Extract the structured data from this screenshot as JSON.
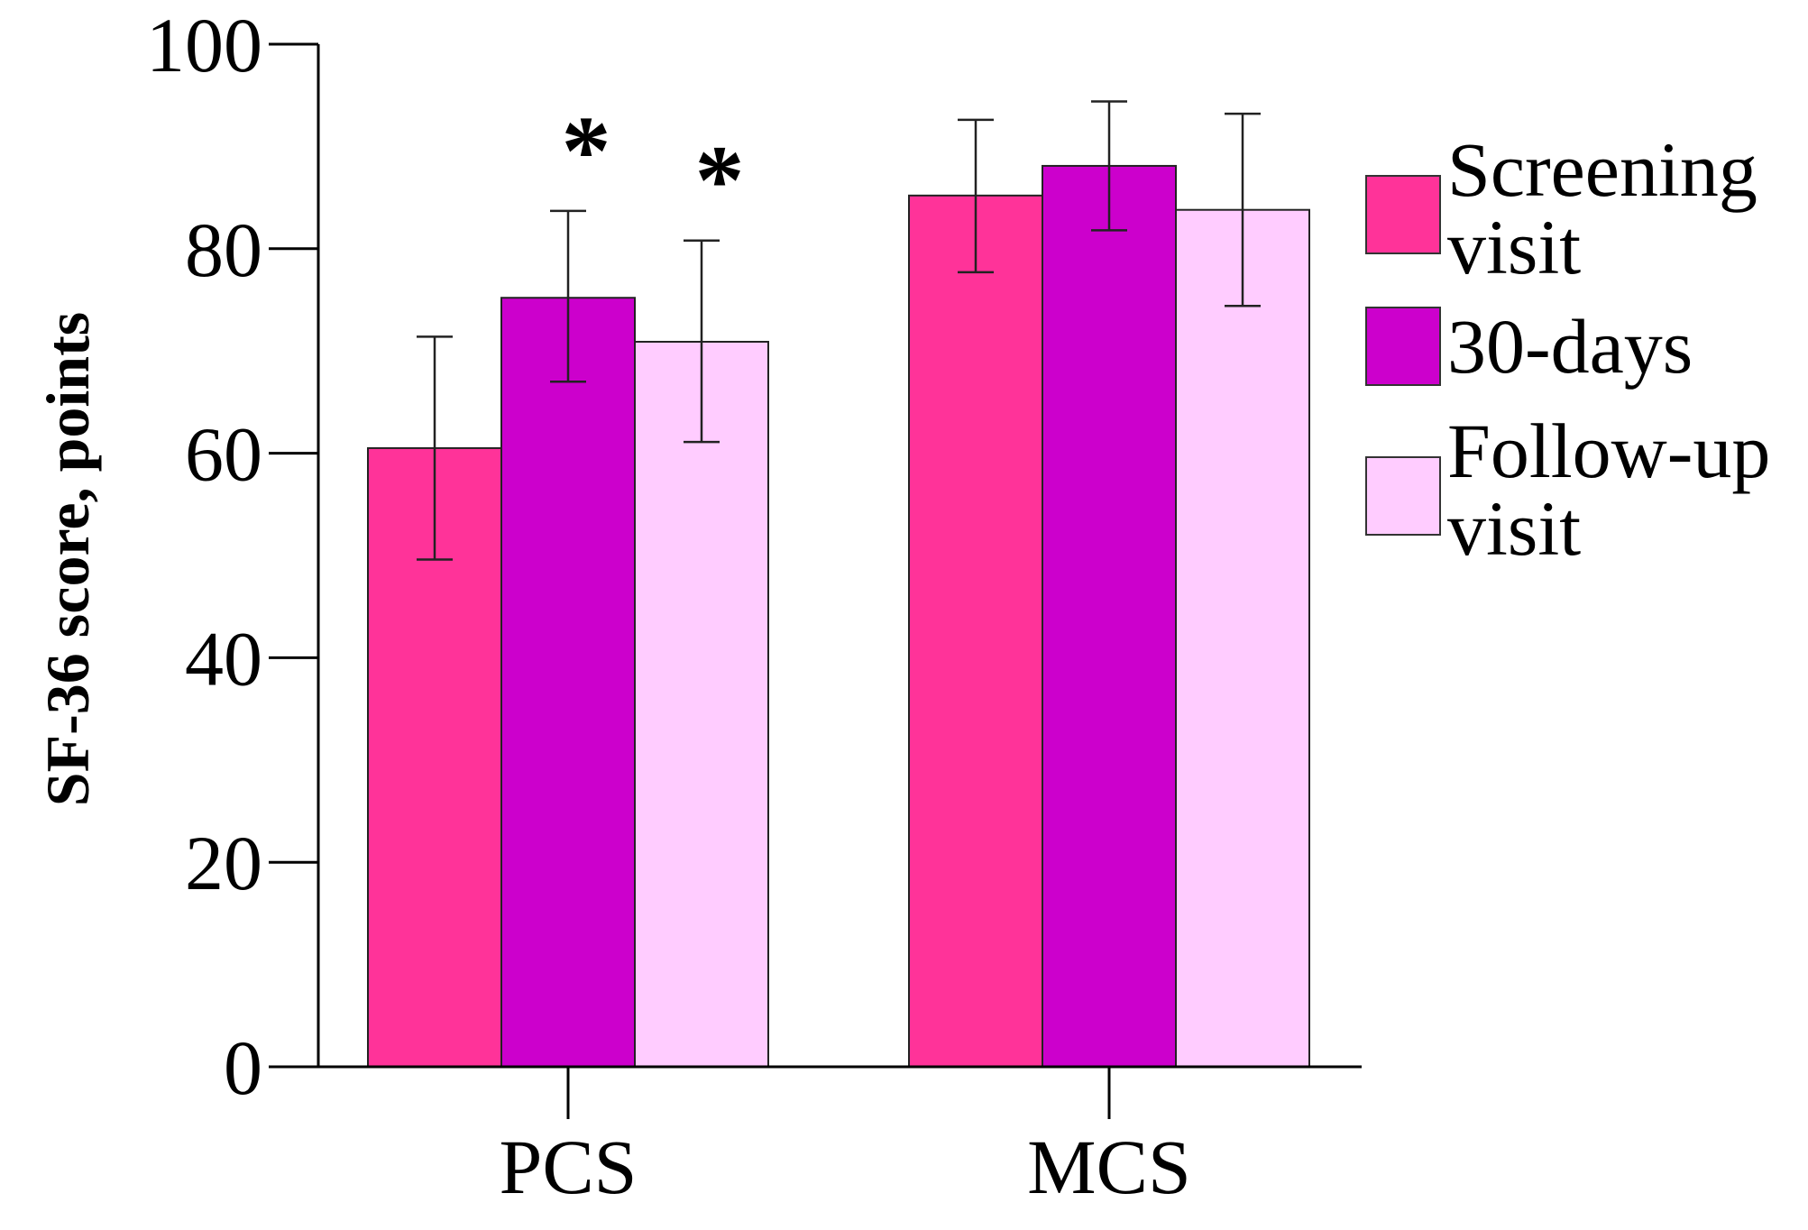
{
  "chart_data": {
    "type": "bar",
    "title": "",
    "xlabel": "",
    "ylabel": "SF-36 score, points",
    "ylim": [
      0,
      100
    ],
    "yticks": [
      0,
      20,
      40,
      60,
      80,
      100
    ],
    "yticks_labels": [
      "0",
      "20",
      "40",
      "60",
      "80",
      "100"
    ],
    "grid": false,
    "legend_position": "right",
    "categories": [
      "PCS",
      "MCS"
    ],
    "series": [
      {
        "name_lines": [
          "Screening",
          "visit"
        ],
        "color": "#FF3399",
        "values": [
          60.5,
          85.2
        ],
        "error_low": [
          49.6,
          77.7
        ],
        "error_high": [
          71.4,
          92.6
        ]
      },
      {
        "name_lines": [
          "30-days"
        ],
        "color": "#CC00CC",
        "values": [
          75.2,
          88.1
        ],
        "error_low": [
          67.0,
          81.8
        ],
        "error_high": [
          83.7,
          94.4
        ]
      },
      {
        "name_lines": [
          "Follow-up",
          "visit"
        ],
        "color": "#FFCCFF",
        "values": [
          70.9,
          83.8
        ],
        "error_low": [
          61.1,
          74.4
        ],
        "error_high": [
          80.8,
          93.2
        ]
      }
    ],
    "annotations": [
      {
        "text": "*",
        "category": 0,
        "series": 1
      },
      {
        "text": "*",
        "category": 0,
        "series": 2
      }
    ]
  }
}
